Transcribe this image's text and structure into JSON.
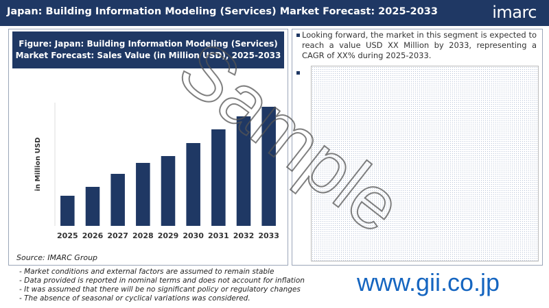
{
  "header": {
    "title": "Japan: Building Information Modeling (Services) Market Forecast: 2025-2033",
    "logo": "imarc"
  },
  "chart_data": {
    "type": "bar",
    "title": "Figure: Japan: Building Information Modeling (Services) Market Forecast: Sales Value (in Million USD), 2025-2033",
    "y_label": "in Million USD",
    "categories": [
      "2025",
      "2026",
      "2027",
      "2028",
      "2029",
      "2030",
      "2031",
      "2032",
      "2033"
    ],
    "values": [
      44,
      57,
      76,
      92,
      102,
      121,
      141,
      160,
      174
    ],
    "color": "#1f3864",
    "ylim": [
      0,
      180
    ]
  },
  "source": "Source: IMARC Group",
  "bullets": [
    "Looking forward, the market in this segment is expected to reach a value USD XX Million by 2033, representing a CAGR of XX% during 2025-2033."
  ],
  "notes": [
    "- Market conditions and external factors are assumed to remain stable",
    "- Data provided is reported in nominal terms and does not account for inflation",
    "- It was assumed that there will be no significant policy or regulatory changes",
    "- The absence of seasonal or cyclical variations was considered."
  ],
  "watermark": "Sample",
  "footer_url": "www.gii.co.jp"
}
